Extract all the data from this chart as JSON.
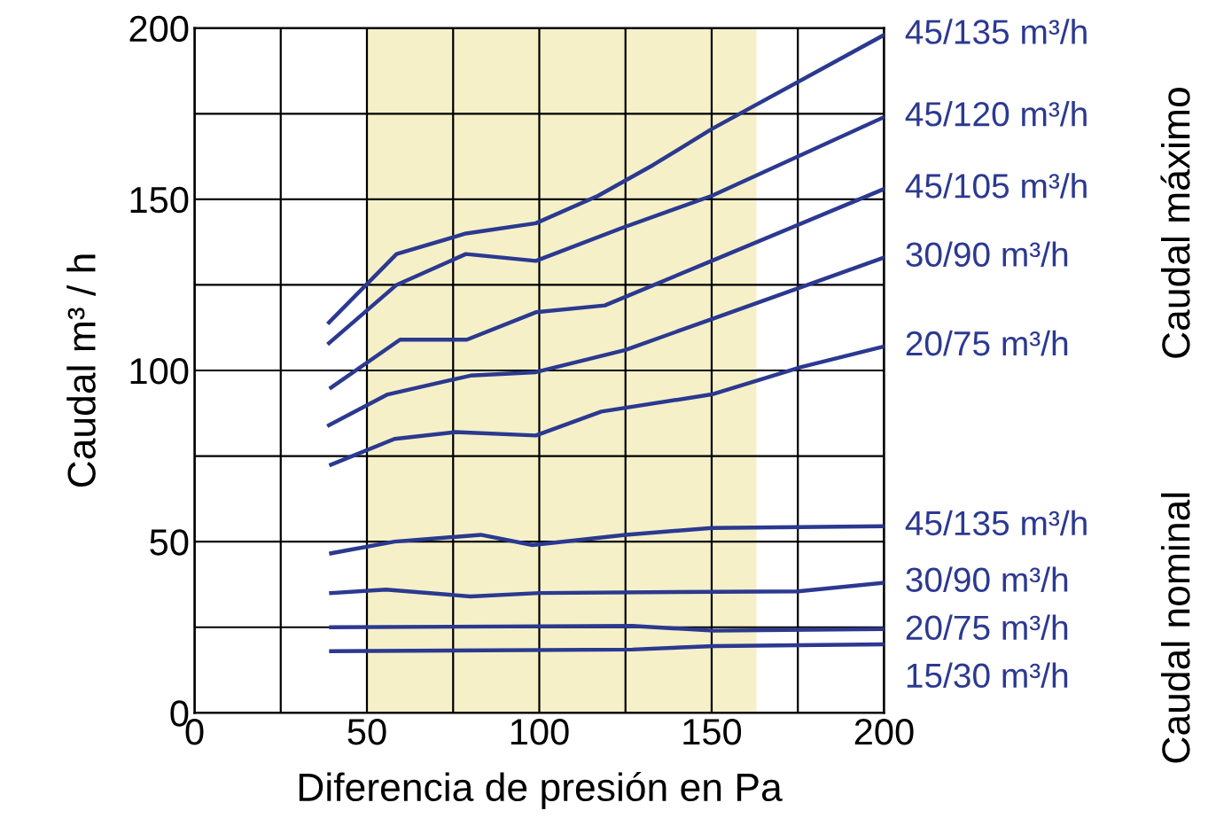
{
  "chart_data": {
    "type": "line",
    "xlabel": "Diferencia de presión en Pa",
    "ylabel": "Caudal m³ / h",
    "xlim": [
      0,
      200
    ],
    "ylim": [
      0,
      200
    ],
    "xticks": [
      0,
      {
        "value": 25,
        "label": null
      },
      50,
      {
        "value": 75,
        "label": null
      },
      100,
      {
        "value": 125,
        "label": null
      },
      150,
      {
        "value": 175,
        "label": null
      },
      200
    ],
    "yticks": [
      0,
      {
        "value": 25,
        "label": null
      },
      50,
      {
        "value": 75,
        "label": null
      },
      100,
      {
        "value": 125,
        "label": null
      },
      150,
      {
        "value": 175,
        "label": null
      },
      200
    ],
    "grid": true,
    "legend": false,
    "marker": "none",
    "line_style": "solid",
    "bands": [
      {
        "axis": "x",
        "from": 50,
        "to": 163,
        "color": "#f5f0c8"
      }
    ],
    "annotations": [
      "Caudal máximo",
      "Caudal nominal"
    ],
    "series": [
      {
        "name": "45/135 m³/h",
        "color": "#2b3990",
        "x": [
          39,
          58.6,
          78.7,
          99,
          117,
          133,
          150,
          200
        ],
        "values": [
          114,
          134,
          140,
          143,
          151,
          160,
          170.5,
          198
        ]
      },
      {
        "name": "45/120 m³/h",
        "color": "#2b3990",
        "x": [
          39,
          58.6,
          78.7,
          99,
          125,
          150,
          200
        ],
        "values": [
          108,
          125,
          134,
          132,
          142,
          151,
          174
        ]
      },
      {
        "name": "45/105 m³/h",
        "color": "#2b3990",
        "x": [
          39.6,
          59.6,
          79,
          99,
          119,
          150,
          200
        ],
        "values": [
          95,
          109,
          109,
          117,
          119,
          132,
          153
        ]
      },
      {
        "name": "30/90 m³/h",
        "color": "#2b3990",
        "x": [
          39,
          56,
          80,
          99,
          125,
          150,
          200
        ],
        "values": [
          84,
          93,
          98.5,
          99.5,
          106,
          115,
          133
        ]
      },
      {
        "name": "20/75 m³/h",
        "color": "#2b3990",
        "x": [
          39.6,
          58,
          75.6,
          99,
          118,
          150,
          176,
          200
        ],
        "values": [
          72.5,
          80,
          82,
          81,
          88,
          93,
          101,
          107
        ]
      },
      {
        "name": "45/135 m³/h",
        "color": "#2b3990",
        "x": [
          39.6,
          58,
          83,
          98,
          125,
          150,
          200
        ],
        "values": [
          46.6,
          50,
          52,
          49,
          52,
          54,
          54.5
        ]
      },
      {
        "name": "30/90 m³/h",
        "color": "#2b3990",
        "x": [
          39.6,
          55.5,
          80,
          100,
          175,
          200
        ],
        "values": [
          35,
          36,
          34,
          35,
          35.5,
          38
        ]
      },
      {
        "name": "20/75 m³/h",
        "color": "#2b3990",
        "x": [
          39.6,
          127,
          150.6,
          200
        ],
        "values": [
          25,
          25.4,
          24,
          24.5
        ]
      },
      {
        "name": "15/30 m³/h",
        "color": "#2b3990",
        "x": [
          39.6,
          127,
          150.6,
          200
        ],
        "values": [
          18,
          18.5,
          19.5,
          20
        ]
      }
    ]
  }
}
